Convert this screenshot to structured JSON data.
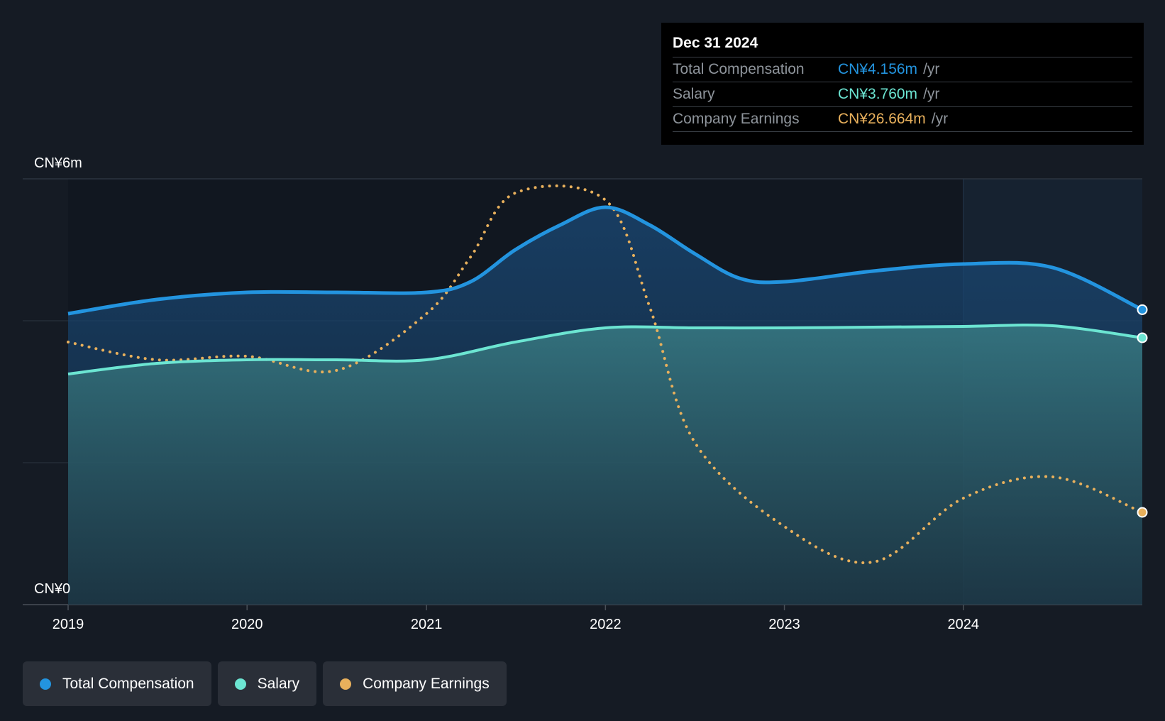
{
  "tooltip": {
    "date": "Dec 31 2024",
    "rows": [
      {
        "label": "Total Compensation",
        "value": "CN¥4.156m",
        "unit": "/yr",
        "color": "#2394df"
      },
      {
        "label": "Salary",
        "value": "CN¥3.760m",
        "unit": "/yr",
        "color": "#6ce5d2"
      },
      {
        "label": "Company Earnings",
        "value": "CN¥26.664m",
        "unit": "/yr",
        "color": "#e8b05c"
      }
    ]
  },
  "legend": [
    {
      "label": "Total Compensation",
      "color": "#2394df"
    },
    {
      "label": "Salary",
      "color": "#6ce5d2"
    },
    {
      "label": "Company Earnings",
      "color": "#e8b05c"
    }
  ],
  "chart_data": {
    "type": "area",
    "x_tick_labels": [
      "2019",
      "2020",
      "2021",
      "2022",
      "2023",
      "2024"
    ],
    "y_tick_labels": [
      "CN¥0",
      "CN¥6m"
    ],
    "ylim": [
      0,
      6
    ],
    "y_unit": "CN¥m",
    "xlim": [
      "2019-01-01",
      "2024-12-31"
    ],
    "highlight_from": "2024-01-01",
    "series": [
      {
        "name": "Total Compensation",
        "color": "#2394df",
        "style": "solid-area",
        "x": [
          "2019-01-01",
          "2019-07-01",
          "2020-01-01",
          "2020-07-01",
          "2021-01-01",
          "2021-04-01",
          "2021-07-01",
          "2021-10-01",
          "2022-01-01",
          "2022-04-01",
          "2022-07-01",
          "2022-10-01",
          "2023-01-01",
          "2023-07-01",
          "2024-01-01",
          "2024-07-01",
          "2024-12-31"
        ],
        "values": [
          4.1,
          4.3,
          4.4,
          4.4,
          4.4,
          4.55,
          5.0,
          5.35,
          5.6,
          5.35,
          4.95,
          4.6,
          4.55,
          4.7,
          4.8,
          4.75,
          4.156
        ]
      },
      {
        "name": "Salary",
        "color": "#6ce5d2",
        "style": "solid-area",
        "x": [
          "2019-01-01",
          "2019-07-01",
          "2020-01-01",
          "2020-07-01",
          "2021-01-01",
          "2021-07-01",
          "2022-01-01",
          "2022-07-01",
          "2023-01-01",
          "2023-07-01",
          "2024-01-01",
          "2024-07-01",
          "2024-12-31"
        ],
        "values": [
          3.25,
          3.4,
          3.45,
          3.45,
          3.45,
          3.7,
          3.9,
          3.9,
          3.9,
          3.91,
          3.92,
          3.93,
          3.76
        ]
      },
      {
        "name": "Company Earnings",
        "color": "#e8b05c",
        "style": "dotted",
        "x": [
          "2019-01-01",
          "2019-07-01",
          "2020-01-01",
          "2020-07-01",
          "2021-01-01",
          "2021-04-01",
          "2021-07-01",
          "2022-01-01",
          "2022-04-01",
          "2022-07-01",
          "2023-01-01",
          "2023-07-01",
          "2024-01-01",
          "2024-07-01",
          "2024-12-31"
        ],
        "values_note_y": "rendered on secondary scale; displayed as relative position",
        "values": [
          3.7,
          3.45,
          3.5,
          3.3,
          4.1,
          4.9,
          5.8,
          5.7,
          4.2,
          2.3,
          1.1,
          0.6,
          1.5,
          1.8,
          1.3
        ]
      }
    ]
  }
}
